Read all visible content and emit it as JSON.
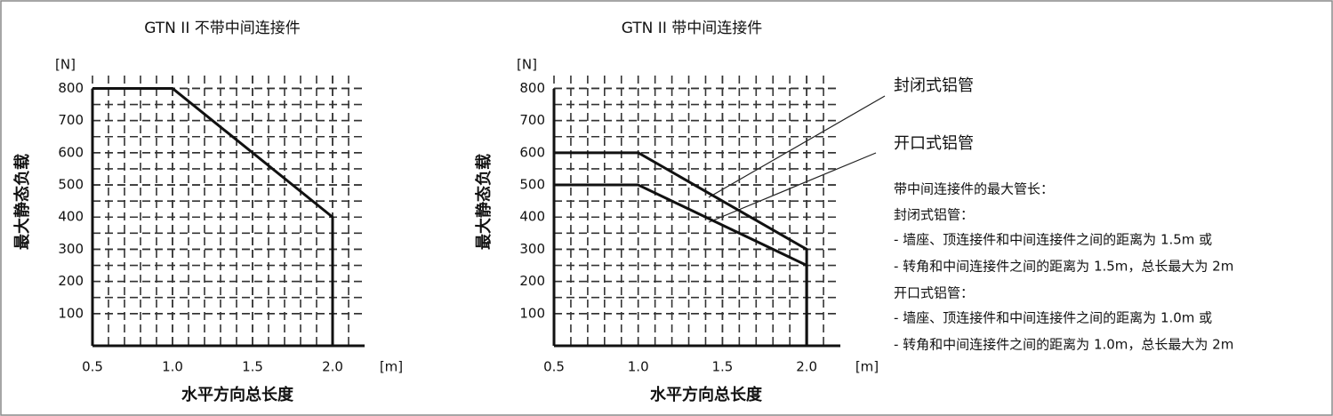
{
  "chart_data": [
    {
      "type": "line",
      "title": "GTN II 不带中间连接件",
      "y_unit": "[N]",
      "x_unit": "[m]",
      "ylabel": "最大静态负载",
      "xlabel": "水平方向总长度",
      "x": [
        0.5,
        {
          "value": 1.0,
          "label": "1.0"
        },
        {
          "value": 2.0,
          "label": "2.0"
        },
        {
          "value": 2.0,
          "label": "2.0"
        }
      ],
      "series": [
        {
          "color": "#111111",
          "values": [
            800,
            800,
            400,
            0
          ]
        }
      ],
      "xlim": [
        0.5,
        2.2
      ],
      "ylim": [
        0,
        840
      ],
      "xticks": [
        0.5,
        {
          "value": 1.0,
          "label": "1.0"
        },
        1.5,
        {
          "value": 2.0,
          "label": "2.0"
        }
      ],
      "yticks": [
        100,
        200,
        300,
        400,
        500,
        600,
        700,
        800
      ],
      "grid": true
    },
    {
      "type": "line",
      "title": "GTN II 带中间连接件",
      "y_unit": "[N]",
      "x_unit": "[m]",
      "ylabel": "最大静态负载",
      "xlabel": "水平方向总长度",
      "x": [
        0.5,
        {
          "value": 1.0,
          "label": "1.0"
        },
        {
          "value": 2.0,
          "label": "2.0"
        },
        {
          "value": 2.0,
          "label": "2.0"
        }
      ],
      "series": [
        {
          "name": "封闭式铝管",
          "color": "#111111",
          "values": [
            600,
            600,
            300,
            0
          ]
        },
        {
          "name": "开口式铝管",
          "color": "#111111",
          "values": [
            500,
            500,
            250,
            0
          ]
        }
      ],
      "xlim": [
        0.5,
        2.2
      ],
      "ylim": [
        0,
        840
      ],
      "xticks": [
        0.5,
        {
          "value": 1.0,
          "label": "1.0"
        },
        1.5,
        {
          "value": 2.0,
          "label": "2.0"
        }
      ],
      "yticks": [
        100,
        200,
        300,
        400,
        500,
        600,
        700,
        800
      ],
      "grid": true
    }
  ],
  "notes": [
    "带中间连接件的最大管长：",
    "封闭式铝管：",
    "- 墙座、顶连接件和中间连接件之间的距离为 1.5m 或",
    "- 转角和中间连接件之间的距离为 1.5m，总长最大为 2m",
    "开口式铝管：",
    "- 墙座、顶连接件和中间连接件之间的距离为 1.0m 或",
    "- 转角和中间连接件之间的距离为 1.0m，总长最大为 2m"
  ]
}
